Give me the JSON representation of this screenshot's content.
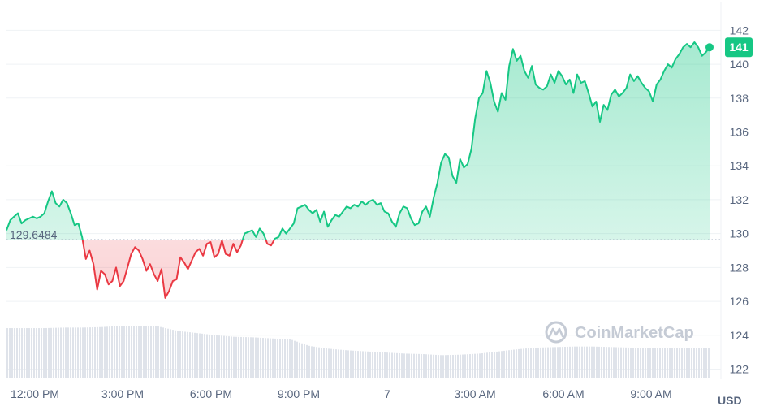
{
  "chart_data": {
    "type": "area",
    "y_ticks": [
      122,
      124,
      126,
      128,
      130,
      132,
      134,
      136,
      138,
      140,
      142
    ],
    "ylim": [
      121.4,
      143.6
    ],
    "x_ticks": [
      "12:00 PM",
      "3:00 PM",
      "6:00 PM",
      "9:00 PM",
      "7",
      "3:00 AM",
      "6:00 AM",
      "9:00 AM"
    ],
    "reference_value": 129.6484,
    "reference_label": "129.6484",
    "current_value_label": "141",
    "currency_label": "USD",
    "watermark": "CoinMarketCap",
    "colors": {
      "up": "#16c784",
      "down": "#ea3943",
      "volume": "#dfe3ea",
      "grid": "#eff2f5"
    },
    "price_series": [
      [
        11.0,
        130.2
      ],
      [
        11.2,
        130.8
      ],
      [
        11.4,
        131.0
      ],
      [
        11.6,
        131.2
      ],
      [
        11.8,
        130.6
      ],
      [
        12.0,
        130.8
      ],
      [
        12.2,
        130.9
      ],
      [
        12.4,
        131.0
      ],
      [
        12.6,
        130.9
      ],
      [
        12.8,
        131.0
      ],
      [
        13.0,
        131.2
      ],
      [
        13.2,
        131.9
      ],
      [
        13.4,
        132.5
      ],
      [
        13.6,
        131.8
      ],
      [
        13.8,
        131.6
      ],
      [
        14.0,
        132.0
      ],
      [
        14.2,
        131.8
      ],
      [
        14.4,
        131.2
      ],
      [
        14.6,
        130.5
      ],
      [
        14.8,
        130.6
      ],
      [
        15.0,
        129.8
      ],
      [
        15.2,
        128.5
      ],
      [
        15.4,
        129.0
      ],
      [
        15.6,
        128.2
      ],
      [
        15.8,
        126.7
      ],
      [
        16.0,
        127.8
      ],
      [
        16.2,
        127.6
      ],
      [
        16.4,
        127.0
      ],
      [
        16.6,
        127.2
      ],
      [
        16.8,
        128.0
      ],
      [
        17.0,
        126.9
      ],
      [
        17.2,
        127.2
      ],
      [
        17.4,
        128.0
      ],
      [
        17.6,
        128.8
      ],
      [
        17.8,
        129.2
      ],
      [
        18.0,
        129.0
      ],
      [
        18.2,
        128.5
      ],
      [
        18.4,
        127.8
      ],
      [
        18.6,
        128.2
      ],
      [
        18.8,
        127.6
      ],
      [
        19.0,
        127.2
      ],
      [
        19.2,
        127.9
      ],
      [
        19.4,
        126.2
      ],
      [
        19.6,
        126.6
      ],
      [
        19.8,
        127.2
      ],
      [
        20.0,
        127.3
      ],
      [
        20.2,
        128.6
      ],
      [
        20.4,
        128.3
      ],
      [
        20.6,
        127.9
      ],
      [
        20.8,
        128.4
      ],
      [
        21.0,
        128.9
      ],
      [
        21.2,
        129.1
      ],
      [
        21.4,
        128.7
      ],
      [
        21.6,
        129.4
      ],
      [
        21.8,
        129.5
      ],
      [
        22.0,
        128.6
      ],
      [
        22.2,
        128.8
      ],
      [
        22.4,
        129.6
      ],
      [
        22.6,
        128.8
      ],
      [
        22.8,
        128.7
      ],
      [
        23.0,
        129.4
      ],
      [
        23.2,
        128.9
      ],
      [
        23.4,
        129.3
      ],
      [
        23.6,
        130.0
      ],
      [
        23.8,
        130.1
      ],
      [
        24.0,
        130.2
      ],
      [
        24.2,
        129.8
      ],
      [
        24.4,
        130.3
      ],
      [
        24.6,
        130.0
      ],
      [
        24.8,
        129.4
      ],
      [
        25.0,
        129.3
      ],
      [
        25.2,
        129.7
      ],
      [
        25.4,
        129.8
      ],
      [
        25.6,
        130.3
      ],
      [
        25.8,
        130.0
      ],
      [
        26.0,
        130.3
      ],
      [
        26.2,
        130.6
      ],
      [
        26.4,
        131.5
      ],
      [
        26.6,
        131.6
      ],
      [
        26.8,
        131.7
      ],
      [
        27.0,
        131.4
      ],
      [
        27.2,
        131.2
      ],
      [
        27.4,
        131.4
      ],
      [
        27.6,
        130.7
      ],
      [
        27.8,
        131.3
      ],
      [
        28.0,
        130.4
      ],
      [
        28.2,
        130.8
      ],
      [
        28.4,
        131.1
      ],
      [
        28.6,
        131.0
      ],
      [
        28.8,
        131.3
      ],
      [
        29.0,
        131.6
      ],
      [
        29.2,
        131.5
      ],
      [
        29.4,
        131.7
      ],
      [
        29.6,
        131.6
      ],
      [
        29.8,
        131.9
      ],
      [
        30.0,
        131.7
      ],
      [
        30.2,
        131.9
      ],
      [
        30.4,
        132.0
      ],
      [
        30.6,
        131.7
      ],
      [
        30.8,
        131.8
      ],
      [
        31.0,
        131.3
      ],
      [
        31.2,
        131.2
      ],
      [
        31.4,
        130.7
      ],
      [
        31.6,
        130.4
      ],
      [
        31.8,
        131.2
      ],
      [
        32.0,
        131.6
      ],
      [
        32.2,
        131.5
      ],
      [
        32.4,
        130.9
      ],
      [
        32.6,
        130.5
      ],
      [
        32.8,
        130.6
      ],
      [
        33.0,
        131.3
      ],
      [
        33.2,
        131.6
      ],
      [
        33.4,
        131.0
      ],
      [
        33.6,
        132.1
      ],
      [
        33.8,
        133.0
      ],
      [
        34.0,
        134.2
      ],
      [
        34.2,
        134.7
      ],
      [
        34.4,
        134.5
      ],
      [
        34.6,
        133.4
      ],
      [
        34.8,
        133.0
      ],
      [
        35.0,
        134.4
      ],
      [
        35.2,
        133.9
      ],
      [
        35.4,
        134.1
      ],
      [
        35.6,
        135.0
      ],
      [
        35.8,
        136.8
      ],
      [
        36.0,
        138.0
      ],
      [
        36.2,
        138.3
      ],
      [
        36.4,
        139.6
      ],
      [
        36.6,
        138.9
      ],
      [
        36.8,
        137.8
      ],
      [
        37.0,
        137.2
      ],
      [
        37.2,
        138.3
      ],
      [
        37.4,
        137.9
      ],
      [
        37.6,
        139.9
      ],
      [
        37.8,
        140.9
      ],
      [
        38.0,
        140.2
      ],
      [
        38.2,
        140.5
      ],
      [
        38.4,
        139.6
      ],
      [
        38.6,
        139.2
      ],
      [
        38.8,
        139.9
      ],
      [
        39.0,
        138.8
      ],
      [
        39.2,
        138.6
      ],
      [
        39.4,
        138.5
      ],
      [
        39.6,
        138.7
      ],
      [
        39.8,
        139.4
      ],
      [
        40.0,
        138.9
      ],
      [
        40.2,
        139.6
      ],
      [
        40.4,
        139.3
      ],
      [
        40.6,
        138.8
      ],
      [
        40.8,
        139.1
      ],
      [
        41.0,
        138.3
      ],
      [
        41.2,
        139.4
      ],
      [
        41.4,
        138.9
      ],
      [
        41.6,
        139.0
      ],
      [
        41.8,
        138.3
      ],
      [
        42.0,
        137.5
      ],
      [
        42.2,
        137.8
      ],
      [
        42.4,
        136.6
      ],
      [
        42.6,
        137.6
      ],
      [
        42.8,
        137.3
      ],
      [
        43.0,
        138.2
      ],
      [
        43.2,
        138.5
      ],
      [
        43.4,
        138.1
      ],
      [
        43.6,
        138.3
      ],
      [
        43.8,
        138.6
      ],
      [
        44.0,
        139.4
      ],
      [
        44.2,
        139.0
      ],
      [
        44.4,
        139.3
      ],
      [
        44.6,
        138.9
      ],
      [
        44.8,
        138.6
      ],
      [
        45.0,
        138.4
      ],
      [
        45.2,
        137.8
      ],
      [
        45.4,
        138.8
      ],
      [
        45.6,
        139.1
      ],
      [
        45.8,
        139.6
      ],
      [
        46.0,
        140.0
      ],
      [
        46.2,
        139.8
      ],
      [
        46.4,
        140.3
      ],
      [
        46.6,
        140.6
      ],
      [
        46.8,
        141.0
      ],
      [
        47.0,
        141.2
      ],
      [
        47.2,
        141.0
      ],
      [
        47.4,
        141.3
      ],
      [
        47.6,
        141.0
      ],
      [
        47.8,
        140.5
      ],
      [
        48.0,
        140.7
      ],
      [
        48.2,
        141.0
      ]
    ],
    "volume_series": [
      [
        11.0,
        0.93
      ],
      [
        12.0,
        0.93
      ],
      [
        13.0,
        0.93
      ],
      [
        14.0,
        0.94
      ],
      [
        15.0,
        0.94
      ],
      [
        16.0,
        0.95
      ],
      [
        17.0,
        0.97
      ],
      [
        18.0,
        0.97
      ],
      [
        19.0,
        0.96
      ],
      [
        20.0,
        0.88
      ],
      [
        21.0,
        0.84
      ],
      [
        22.0,
        0.8
      ],
      [
        23.0,
        0.77
      ],
      [
        24.0,
        0.76
      ],
      [
        25.0,
        0.74
      ],
      [
        26.0,
        0.72
      ],
      [
        27.0,
        0.6
      ],
      [
        28.0,
        0.55
      ],
      [
        29.0,
        0.52
      ],
      [
        30.0,
        0.5
      ],
      [
        31.0,
        0.48
      ],
      [
        32.0,
        0.46
      ],
      [
        33.0,
        0.45
      ],
      [
        34.0,
        0.43
      ],
      [
        35.0,
        0.44
      ],
      [
        36.0,
        0.46
      ],
      [
        37.0,
        0.5
      ],
      [
        38.0,
        0.54
      ],
      [
        39.0,
        0.57
      ],
      [
        40.0,
        0.58
      ],
      [
        41.0,
        0.59
      ],
      [
        42.0,
        0.59
      ],
      [
        43.0,
        0.58
      ],
      [
        44.0,
        0.57
      ],
      [
        45.0,
        0.57
      ],
      [
        46.0,
        0.56
      ],
      [
        47.0,
        0.56
      ],
      [
        48.2,
        0.56
      ]
    ]
  }
}
